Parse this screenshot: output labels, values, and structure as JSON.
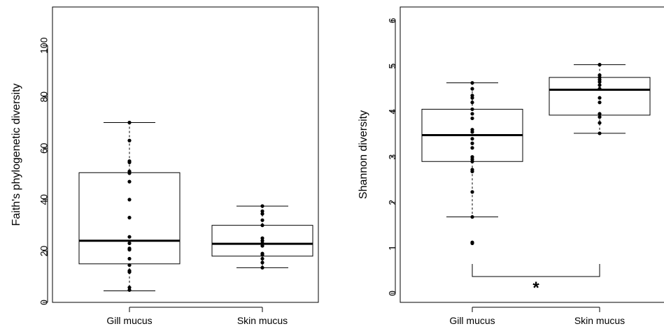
{
  "chart_data": [
    {
      "type": "box",
      "ylabel": "Faith's phylogenetic diversity",
      "ylim": [
        0,
        115
      ],
      "yticks": [
        0,
        20,
        40,
        60,
        80,
        100
      ],
      "categories": [
        "Gill mucus",
        "Skin mucus"
      ],
      "boxes": [
        {
          "label": "Gill mucus",
          "whisker_low": 4.5,
          "q1": 15,
          "median": 24,
          "q3": 50.5,
          "whisker_high": 70,
          "points": [
            4.8,
            5.8,
            11.8,
            12.3,
            14.5,
            17,
            20.5,
            21,
            23,
            25.5,
            33,
            40,
            47,
            50.3,
            51,
            54.5,
            55,
            63,
            70
          ]
        },
        {
          "label": "Skin mucus",
          "whisker_low": 13.5,
          "q1": 18,
          "median": 22.8,
          "q3": 30,
          "whisker_high": 37.5,
          "points": [
            13.5,
            15.5,
            17,
            18.5,
            19,
            22,
            23,
            24,
            25,
            30,
            32,
            34.5,
            35.5,
            37.5
          ]
        }
      ],
      "annotations": []
    },
    {
      "type": "box",
      "ylabel": "Shannon diversity",
      "ylim": [
        -0.2,
        6.3
      ],
      "yticks": [
        0,
        1,
        2,
        3,
        4,
        5,
        6
      ],
      "categories": [
        "Gill mucus",
        "Skin mucus"
      ],
      "boxes": [
        {
          "label": "Gill mucus",
          "whisker_low": 1.68,
          "q1": 2.9,
          "median": 3.48,
          "q3": 4.05,
          "whisker_high": 4.63,
          "points": [
            1.1,
            1.12,
            1.68,
            2.23,
            2.68,
            2.72,
            2.9,
            2.95,
            3.0,
            3.2,
            3.3,
            3.4,
            3.55,
            3.6,
            3.85,
            3.95,
            4.05,
            4.2,
            4.3,
            4.35,
            4.5,
            4.63
          ]
        },
        {
          "label": "Skin mucus",
          "whisker_low": 3.52,
          "q1": 3.92,
          "median": 4.48,
          "q3": 4.75,
          "whisker_high": 5.03,
          "points": [
            3.52,
            3.75,
            3.88,
            3.95,
            4.2,
            4.3,
            4.5,
            4.58,
            4.65,
            4.7,
            4.75,
            4.8,
            5.03
          ]
        }
      ],
      "annotations": [
        {
          "type": "bracket",
          "from": "Gill mucus",
          "to": "Skin mucus",
          "label": "*"
        }
      ]
    }
  ]
}
